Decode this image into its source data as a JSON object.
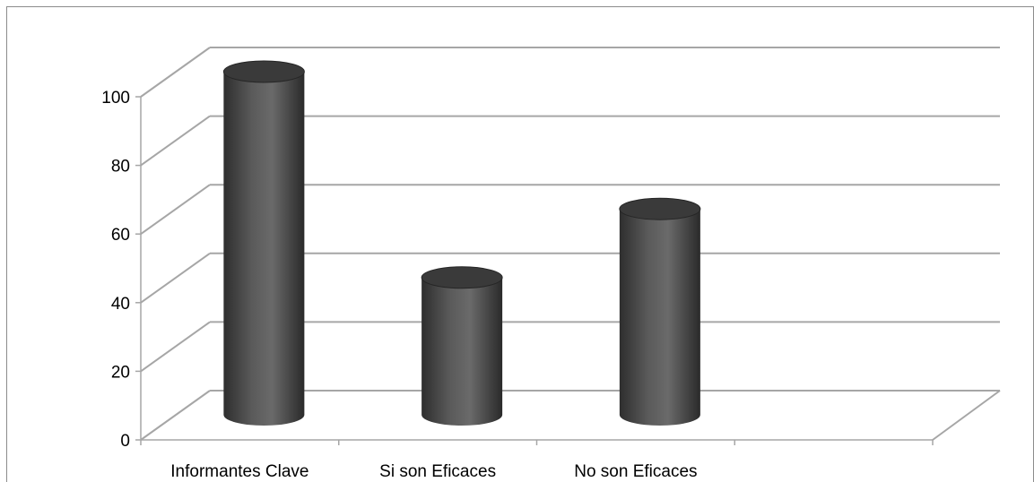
{
  "chart_data": {
    "type": "bar",
    "style": "3d-cylinder",
    "categories": [
      "Informantes Clave",
      "Si son Eficaces",
      "No son Eficaces",
      ""
    ],
    "values": [
      100,
      40,
      60,
      null
    ],
    "ylim": [
      0,
      100
    ],
    "yticks": [
      "0",
      "20",
      "40",
      "60",
      "80",
      "100"
    ],
    "grid": true,
    "legend": "none",
    "title": "",
    "xlabel": "",
    "ylabel": ""
  },
  "colors": {
    "bar_dark": "#2e2e2e",
    "bar_mid": "#6a6a6a",
    "bar_top": "#3a3a3a",
    "grid": "#a6a6a6",
    "frame": "#8c8c8c"
  }
}
